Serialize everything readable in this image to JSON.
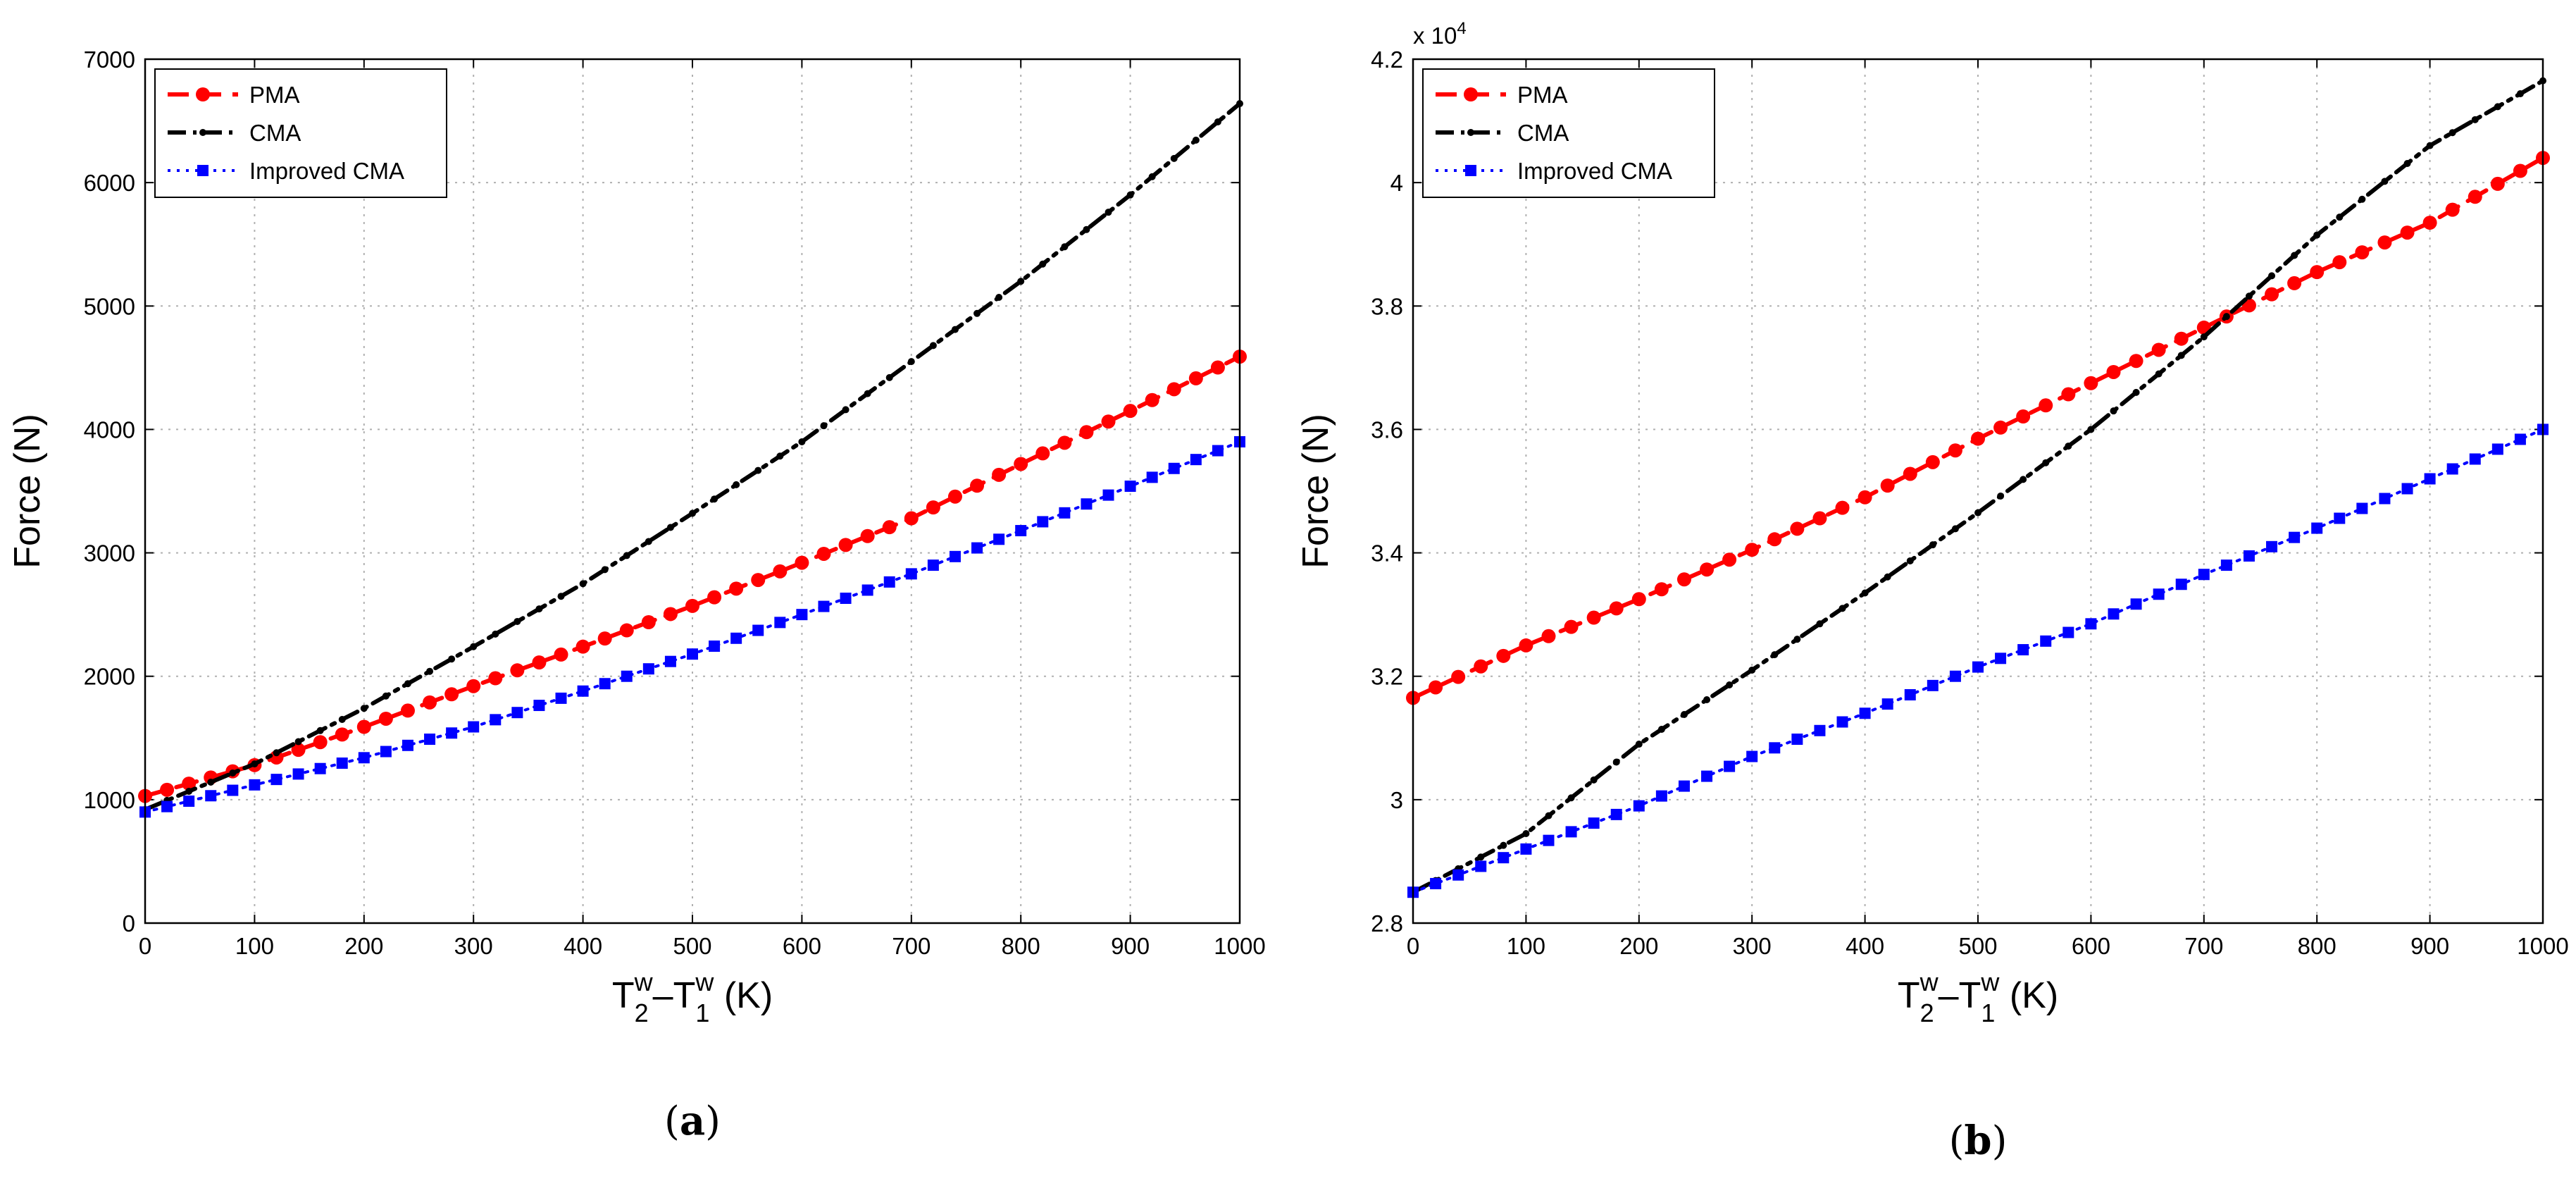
{
  "chart_data": [
    {
      "id": "a",
      "type": "line",
      "panel_label": "a",
      "xlabel": {
        "base": "T",
        "sub1": "2",
        "sup1": "w",
        "mid": "–T",
        "sub2": "1",
        "sup2": "w",
        "unit": " (K)"
      },
      "ylabel": "Force (N)",
      "xlim": [
        0,
        1000
      ],
      "ylim": [
        0,
        7000
      ],
      "x_ticks": [
        0,
        100,
        200,
        300,
        400,
        500,
        600,
        700,
        800,
        900,
        1000
      ],
      "y_ticks": [
        0,
        1000,
        2000,
        3000,
        4000,
        5000,
        6000,
        7000
      ],
      "y_tick_labels": [
        "0",
        "1000",
        "2000",
        "3000",
        "4000",
        "5000",
        "6000",
        "7000"
      ],
      "exponent_label": "",
      "grid": true,
      "legend_position": "top-left",
      "x": [
        0,
        100,
        200,
        300,
        400,
        500,
        600,
        700,
        800,
        900,
        1000
      ],
      "series": [
        {
          "name": "PMA",
          "color": "#ff0000",
          "style": "dashed",
          "marker": "circle",
          "values": [
            1030,
            1280,
            1590,
            1920,
            2240,
            2570,
            2920,
            3280,
            3720,
            4150,
            4590
          ]
        },
        {
          "name": "CMA",
          "color": "#000000",
          "style": "dashdot",
          "marker": "point",
          "values": [
            920,
            1290,
            1740,
            2240,
            2750,
            3320,
            3900,
            4550,
            5200,
            5900,
            6640
          ]
        },
        {
          "name": "Improved CMA",
          "color": "#0000ff",
          "style": "dotted",
          "marker": "square",
          "values": [
            900,
            1120,
            1340,
            1590,
            1880,
            2180,
            2500,
            2830,
            3180,
            3540,
            3900
          ]
        }
      ]
    },
    {
      "id": "b",
      "type": "line",
      "panel_label": "b",
      "xlabel": {
        "base": "T",
        "sub1": "2",
        "sup1": "w",
        "mid": "–T",
        "sub2": "1",
        "sup2": "w",
        "unit": " (K)"
      },
      "ylabel": "Force (N)",
      "xlim": [
        0,
        1000
      ],
      "ylim": [
        28000,
        42000
      ],
      "x_ticks": [
        0,
        100,
        200,
        300,
        400,
        500,
        600,
        700,
        800,
        900,
        1000
      ],
      "y_ticks": [
        28000,
        30000,
        32000,
        34000,
        36000,
        38000,
        40000,
        42000
      ],
      "y_tick_labels": [
        "2.8",
        "3",
        "3.2",
        "3.4",
        "3.6",
        "3.8",
        "4",
        "4.2"
      ],
      "exponent_label": {
        "prefix": "x 10",
        "power": "4"
      },
      "grid": true,
      "legend_position": "top-left",
      "x": [
        0,
        100,
        200,
        300,
        400,
        500,
        600,
        700,
        800,
        900,
        1000
      ],
      "series": [
        {
          "name": "PMA",
          "color": "#ff0000",
          "style": "dashed",
          "marker": "circle",
          "values": [
            31650,
            32500,
            33250,
            34050,
            34900,
            35850,
            36750,
            37650,
            38550,
            39350,
            40400
          ]
        },
        {
          "name": "CMA",
          "color": "#000000",
          "style": "dashdot",
          "marker": "point",
          "values": [
            28500,
            29450,
            30900,
            32100,
            33350,
            34650,
            36000,
            37500,
            39150,
            40600,
            41650
          ]
        },
        {
          "name": "Improved CMA",
          "color": "#0000ff",
          "style": "dotted",
          "marker": "square",
          "values": [
            28500,
            29200,
            29900,
            30700,
            31400,
            32150,
            32850,
            33650,
            34400,
            35200,
            36000
          ]
        }
      ]
    }
  ]
}
